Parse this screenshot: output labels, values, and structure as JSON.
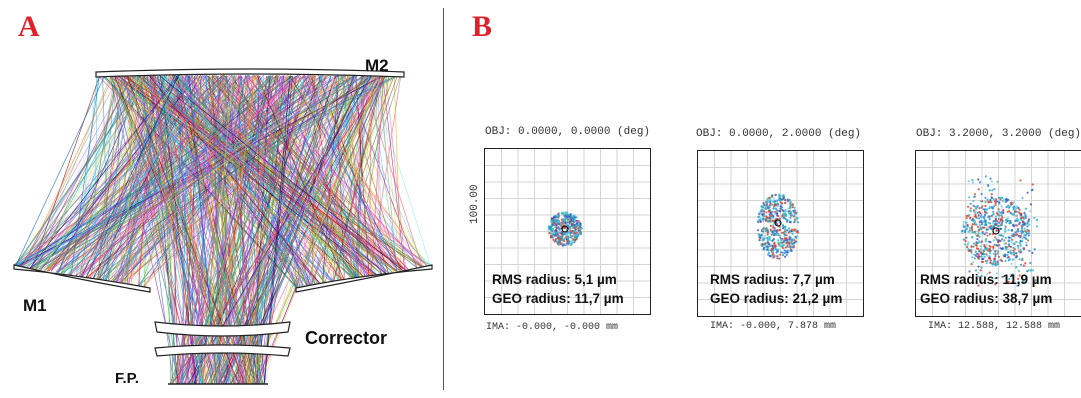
{
  "panel_a": {
    "letter": "A",
    "label_m2": "M2",
    "label_m1": "M1",
    "label_corrector": "Corrector",
    "label_fp": "F.P."
  },
  "panel_b": {
    "letter": "B",
    "scale_label": "100.00",
    "spots": [
      {
        "obj": "OBJ: 0.0000, 0.0000 (deg)",
        "rms": "RMS radius: 5,1 µm",
        "geo": "GEO radius: 11,7 µm",
        "ima": "IMA: -0.000, -0.000 mm"
      },
      {
        "obj": "OBJ: 0.0000, 2.0000 (deg)",
        "rms": "RMS radius: 7,7 µm",
        "geo": "GEO radius: 21,2 µm",
        "ima": "IMA: -0.000, 7.878 mm"
      },
      {
        "obj": "OBJ: 3.2000, 3.2000 (deg)",
        "rms": "RMS radius: 11,9 µm",
        "geo": "GEO radius: 38,7 µm",
        "ima": "IMA: 12.588, 12.588 mm"
      }
    ]
  },
  "ray_colors": [
    "#e6194b",
    "#3cb44b",
    "#4363d8",
    "#f58231",
    "#911eb4",
    "#42d4f4",
    "#f032e6",
    "#bfef45",
    "#fabed4",
    "#469990",
    "#9a6324",
    "#800000",
    "#808000",
    "#000075",
    "#00aaff",
    "#ff5577",
    "#22bb99",
    "#aa44ff",
    "#ffaa00",
    "#0066cc"
  ]
}
